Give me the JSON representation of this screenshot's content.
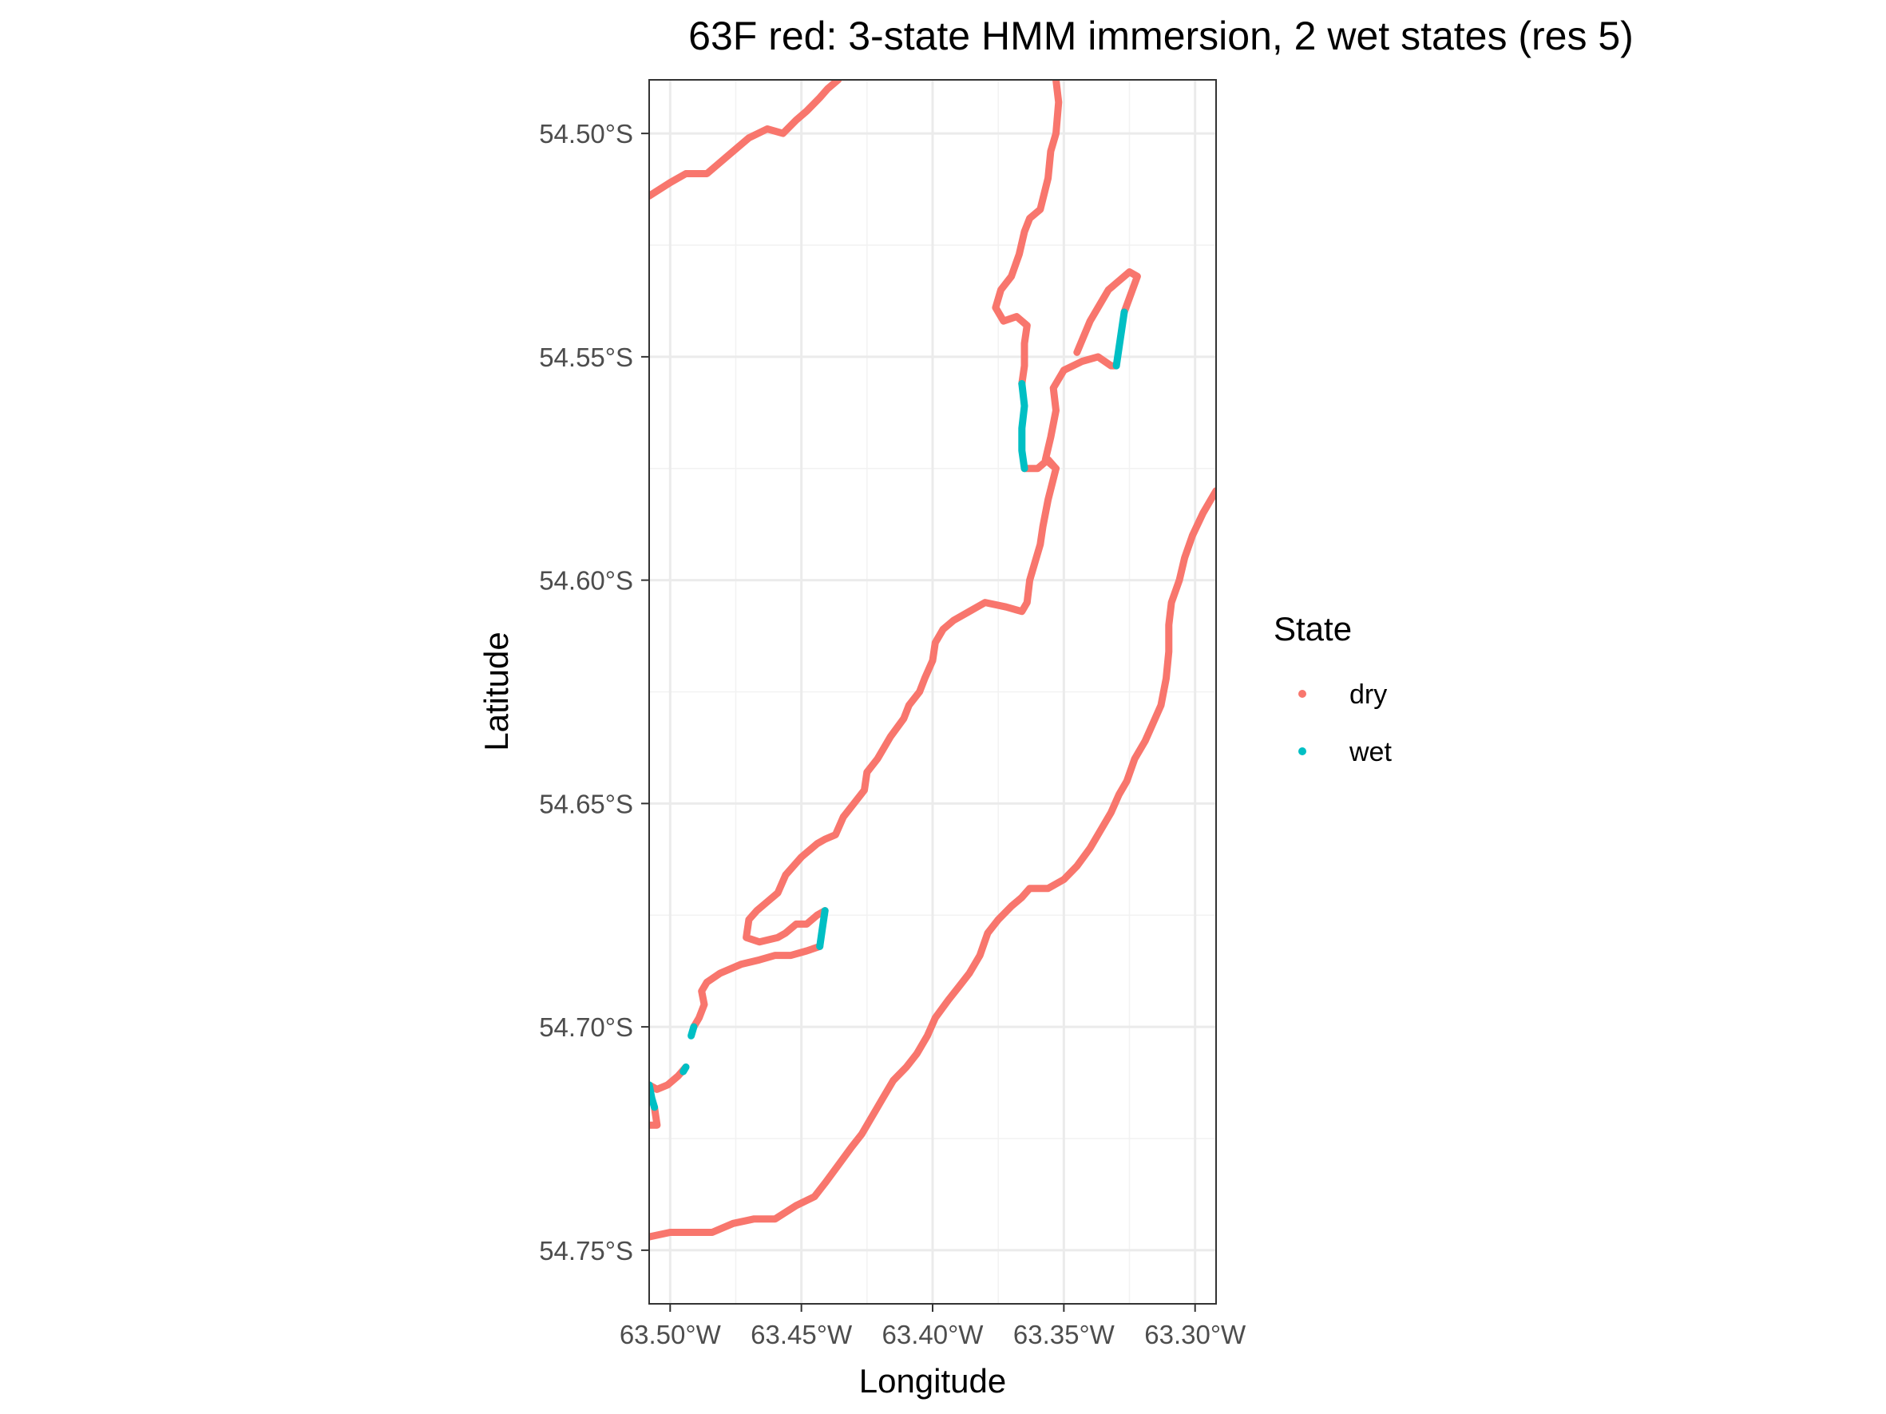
{
  "chart_data": {
    "type": "scatter",
    "title": "63F red: 3-state HMM immersion, 2 wet states (res 5)",
    "xlabel": "Longitude",
    "ylabel": "Latitude",
    "xlim": [
      -63.508,
      -63.292
    ],
    "ylim": [
      -54.762,
      -54.488
    ],
    "x_ticks": [
      -63.5,
      -63.45,
      -63.4,
      -63.35,
      -63.3
    ],
    "x_tick_labels": [
      "63.50°W",
      "63.45°W",
      "63.40°W",
      "63.35°W",
      "63.30°W"
    ],
    "y_ticks": [
      -54.5,
      -54.55,
      -54.6,
      -54.65,
      -54.7,
      -54.75
    ],
    "y_tick_labels": [
      "54.50°S",
      "54.55°S",
      "54.60°S",
      "54.65°S",
      "54.70°S",
      "54.75°S"
    ],
    "grid": true,
    "legend": {
      "title": "State",
      "placement": "right",
      "entries": [
        {
          "label": "dry",
          "color": "#F8766D"
        },
        {
          "label": "wet",
          "color": "#00BFC4"
        }
      ]
    },
    "series": [
      {
        "state": "dry",
        "color": "#F8766D",
        "segments": [
          [
            [
              -63.508,
              -54.514
            ],
            [
              -63.5,
              -54.511
            ],
            [
              -63.494,
              -54.509
            ],
            [
              -63.486,
              -54.509
            ],
            [
              -63.478,
              -54.505
            ],
            [
              -63.47,
              -54.501
            ],
            [
              -63.463,
              -54.499
            ],
            [
              -63.457,
              -54.5
            ],
            [
              -63.452,
              -54.497
            ],
            [
              -63.448,
              -54.495
            ],
            [
              -63.443,
              -54.492
            ],
            [
              -63.44,
              -54.49
            ],
            [
              -63.436,
              -54.488
            ]
          ],
          [
            [
              -63.353,
              -54.488
            ],
            [
              -63.352,
              -54.493
            ],
            [
              -63.353,
              -54.5
            ],
            [
              -63.355,
              -54.504
            ],
            [
              -63.356,
              -54.51
            ],
            [
              -63.359,
              -54.517
            ],
            [
              -63.363,
              -54.519
            ],
            [
              -63.365,
              -54.522
            ],
            [
              -63.367,
              -54.527
            ],
            [
              -63.37,
              -54.532
            ],
            [
              -63.374,
              -54.535
            ],
            [
              -63.376,
              -54.539
            ],
            [
              -63.373,
              -54.542
            ],
            [
              -63.368,
              -54.541
            ],
            [
              -63.364,
              -54.543
            ],
            [
              -63.365,
              -54.547
            ],
            [
              -63.365,
              -54.552
            ],
            [
              -63.366,
              -54.556
            ]
          ],
          [
            [
              -63.365,
              -54.575
            ],
            [
              -63.36,
              -54.575
            ],
            [
              -63.356,
              -54.573
            ],
            [
              -63.353,
              -54.575
            ],
            [
              -63.357,
              -54.573
            ],
            [
              -63.355,
              -54.568
            ],
            [
              -63.353,
              -54.562
            ],
            [
              -63.354,
              -54.557
            ],
            [
              -63.35,
              -54.553
            ],
            [
              -63.343,
              -54.551
            ],
            [
              -63.337,
              -54.55
            ],
            [
              -63.332,
              -54.552
            ],
            [
              -63.33,
              -54.552
            ]
          ],
          [
            [
              -63.345,
              -54.549
            ],
            [
              -63.34,
              -54.542
            ],
            [
              -63.333,
              -54.535
            ],
            [
              -63.325,
              -54.531
            ],
            [
              -63.322,
              -54.532
            ],
            [
              -63.327,
              -54.54
            ]
          ],
          [
            [
              -63.353,
              -54.575
            ],
            [
              -63.356,
              -54.582
            ],
            [
              -63.358,
              -54.588
            ],
            [
              -63.359,
              -54.592
            ],
            [
              -63.361,
              -54.596
            ],
            [
              -63.363,
              -54.6
            ],
            [
              -63.364,
              -54.605
            ],
            [
              -63.366,
              -54.607
            ],
            [
              -63.372,
              -54.606
            ],
            [
              -63.38,
              -54.605
            ],
            [
              -63.386,
              -54.607
            ],
            [
              -63.392,
              -54.609
            ],
            [
              -63.396,
              -54.611
            ],
            [
              -63.399,
              -54.614
            ],
            [
              -63.4,
              -54.618
            ],
            [
              -63.403,
              -54.622
            ],
            [
              -63.405,
              -54.625
            ],
            [
              -63.409,
              -54.628
            ],
            [
              -63.411,
              -54.631
            ],
            [
              -63.416,
              -54.635
            ],
            [
              -63.421,
              -54.64
            ],
            [
              -63.425,
              -54.643
            ],
            [
              -63.426,
              -54.647
            ],
            [
              -63.43,
              -54.65
            ],
            [
              -63.434,
              -54.653
            ],
            [
              -63.437,
              -54.657
            ],
            [
              -63.441,
              -54.658
            ],
            [
              -63.444,
              -54.659
            ],
            [
              -63.45,
              -54.662
            ],
            [
              -63.456,
              -54.666
            ],
            [
              -63.459,
              -54.67
            ],
            [
              -63.463,
              -54.672
            ],
            [
              -63.467,
              -54.674
            ],
            [
              -63.47,
              -54.676
            ],
            [
              -63.471,
              -54.68
            ],
            [
              -63.466,
              -54.681
            ],
            [
              -63.459,
              -54.68
            ],
            [
              -63.456,
              -54.679
            ],
            [
              -63.452,
              -54.677
            ],
            [
              -63.448,
              -54.677
            ],
            [
              -63.444,
              -54.675
            ],
            [
              -63.441,
              -54.674
            ]
          ],
          [
            [
              -63.443,
              -54.682
            ],
            [
              -63.448,
              -54.683
            ],
            [
              -63.454,
              -54.684
            ],
            [
              -63.46,
              -54.684
            ],
            [
              -63.466,
              -54.685
            ],
            [
              -63.473,
              -54.686
            ],
            [
              -63.481,
              -54.688
            ],
            [
              -63.486,
              -54.69
            ],
            [
              -63.488,
              -54.692
            ],
            [
              -63.487,
              -54.695
            ],
            [
              -63.489,
              -54.698
            ],
            [
              -63.491,
              -54.7
            ]
          ],
          [
            [
              -63.494,
              -54.709
            ],
            [
              -63.497,
              -54.711
            ],
            [
              -63.501,
              -54.713
            ],
            [
              -63.505,
              -54.714
            ],
            [
              -63.508,
              -54.713
            ]
          ],
          [
            [
              -63.506,
              -54.718
            ],
            [
              -63.505,
              -54.722
            ],
            [
              -63.508,
              -54.722
            ]
          ],
          [
            [
              -63.508,
              -54.747
            ],
            [
              -63.5,
              -54.746
            ],
            [
              -63.492,
              -54.746
            ],
            [
              -63.484,
              -54.746
            ],
            [
              -63.476,
              -54.744
            ],
            [
              -63.468,
              -54.743
            ],
            [
              -63.46,
              -54.743
            ],
            [
              -63.452,
              -54.74
            ],
            [
              -63.445,
              -54.738
            ],
            [
              -63.441,
              -54.735
            ],
            [
              -63.436,
              -54.731
            ],
            [
              -63.431,
              -54.727
            ],
            [
              -63.427,
              -54.724
            ],
            [
              -63.423,
              -54.72
            ],
            [
              -63.419,
              -54.716
            ],
            [
              -63.415,
              -54.712
            ],
            [
              -63.41,
              -54.709
            ],
            [
              -63.406,
              -54.706
            ],
            [
              -63.402,
              -54.702
            ],
            [
              -63.399,
              -54.698
            ],
            [
              -63.394,
              -54.694
            ],
            [
              -63.39,
              -54.691
            ],
            [
              -63.386,
              -54.688
            ],
            [
              -63.382,
              -54.684
            ],
            [
              -63.379,
              -54.679
            ],
            [
              -63.375,
              -54.676
            ],
            [
              -63.37,
              -54.673
            ],
            [
              -63.366,
              -54.671
            ],
            [
              -63.363,
              -54.669
            ],
            [
              -63.356,
              -54.669
            ],
            [
              -63.35,
              -54.667
            ],
            [
              -63.345,
              -54.664
            ],
            [
              -63.34,
              -54.66
            ],
            [
              -63.336,
              -54.656
            ],
            [
              -63.332,
              -54.652
            ],
            [
              -63.329,
              -54.648
            ],
            [
              -63.326,
              -54.645
            ],
            [
              -63.323,
              -54.64
            ],
            [
              -63.319,
              -54.636
            ],
            [
              -63.316,
              -54.632
            ],
            [
              -63.313,
              -54.628
            ],
            [
              -63.311,
              -54.622
            ],
            [
              -63.31,
              -54.616
            ],
            [
              -63.31,
              -54.61
            ],
            [
              -63.309,
              -54.605
            ],
            [
              -63.306,
              -54.6
            ],
            [
              -63.304,
              -54.595
            ],
            [
              -63.301,
              -54.59
            ],
            [
              -63.297,
              -54.585
            ],
            [
              -63.294,
              -54.582
            ],
            [
              -63.292,
              -54.58
            ]
          ]
        ]
      },
      {
        "state": "wet",
        "color": "#00BFC4",
        "segments": [
          [
            [
              -63.366,
              -54.556
            ],
            [
              -63.365,
              -54.561
            ],
            [
              -63.366,
              -54.566
            ],
            [
              -63.366,
              -54.571
            ],
            [
              -63.365,
              -54.575
            ]
          ],
          [
            [
              -63.33,
              -54.552
            ],
            [
              -63.329,
              -54.548
            ],
            [
              -63.328,
              -54.544
            ],
            [
              -63.327,
              -54.54
            ]
          ],
          [
            [
              -63.441,
              -54.674
            ],
            [
              -63.442,
              -54.678
            ],
            [
              -63.443,
              -54.682
            ]
          ],
          [
            [
              -63.491,
              -54.7
            ],
            [
              -63.492,
              -54.702
            ]
          ],
          [
            [
              -63.494,
              -54.709
            ],
            [
              -63.495,
              -54.71
            ]
          ],
          [
            [
              -63.508,
              -54.713
            ],
            [
              -63.507,
              -54.716
            ],
            [
              -63.506,
              -54.718
            ]
          ]
        ]
      }
    ]
  }
}
